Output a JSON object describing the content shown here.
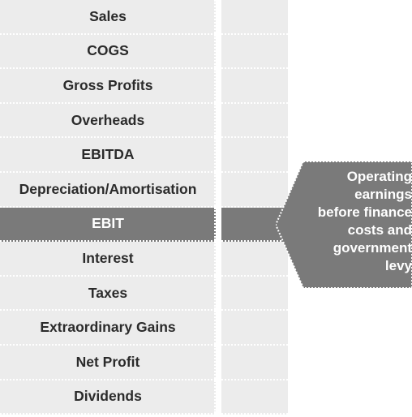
{
  "rows": [
    {
      "label": "Sales",
      "highlight": false
    },
    {
      "label": "COGS",
      "highlight": false
    },
    {
      "label": "Gross Profits",
      "highlight": false
    },
    {
      "label": "Overheads",
      "highlight": false
    },
    {
      "label": "EBITDA",
      "highlight": false
    },
    {
      "label": "Depreciation/Amortisation",
      "highlight": false
    },
    {
      "label": "EBIT",
      "highlight": true
    },
    {
      "label": "Interest",
      "highlight": false
    },
    {
      "label": "Taxes",
      "highlight": false
    },
    {
      "label": "Extraordinary Gains",
      "highlight": false
    },
    {
      "label": "Net Profit",
      "highlight": false
    },
    {
      "label": "Dividends",
      "highlight": false
    }
  ],
  "callout": {
    "text": "Operating\nearnings\nbefore finance\ncosts and\ngovernment\nlevy"
  },
  "colors": {
    "row_bg": "#ececec",
    "highlight_bg": "#7a7a7a",
    "callout_bg": "#7a7a7a",
    "text": "#2b2b2b"
  }
}
